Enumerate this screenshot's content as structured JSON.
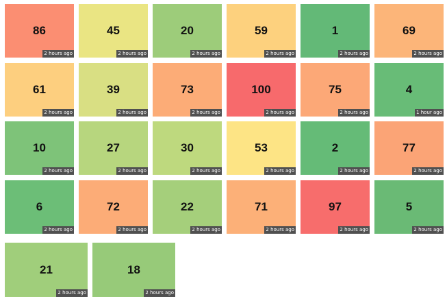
{
  "tiles": [
    {
      "value": "86",
      "age": "2 hours ago",
      "color": "#fb8e72"
    },
    {
      "value": "45",
      "age": "2 hours ago",
      "color": "#eae583"
    },
    {
      "value": "20",
      "age": "2 hours ago",
      "color": "#9dcc7a"
    },
    {
      "value": "59",
      "age": "2 hours ago",
      "color": "#fdd17e"
    },
    {
      "value": "1",
      "age": "2 hours ago",
      "color": "#63b977"
    },
    {
      "value": "69",
      "age": "2 hours ago",
      "color": "#fcb579"
    },
    {
      "value": "61",
      "age": "2 hours ago",
      "color": "#fdcf7f"
    },
    {
      "value": "39",
      "age": "2 hours ago",
      "color": "#d9df83"
    },
    {
      "value": "73",
      "age": "2 hours ago",
      "color": "#fcac77"
    },
    {
      "value": "100",
      "age": "2 hours ago",
      "color": "#f76a6c"
    },
    {
      "value": "75",
      "age": "2 hours ago",
      "color": "#fca877"
    },
    {
      "value": "4",
      "age": "1 hour ago",
      "color": "#68bc77"
    },
    {
      "value": "10",
      "age": "2 hours ago",
      "color": "#7ec379"
    },
    {
      "value": "27",
      "age": "2 hours ago",
      "color": "#b7d67e"
    },
    {
      "value": "30",
      "age": "2 hours ago",
      "color": "#bed97e"
    },
    {
      "value": "53",
      "age": "2 hours ago",
      "color": "#fde485"
    },
    {
      "value": "2",
      "age": "2 hours ago",
      "color": "#65bb77"
    },
    {
      "value": "77",
      "age": "2 hours ago",
      "color": "#fba476"
    },
    {
      "value": "6",
      "age": "2 hours ago",
      "color": "#6cbe77"
    },
    {
      "value": "72",
      "age": "2 hours ago",
      "color": "#fcac77"
    },
    {
      "value": "22",
      "age": "2 hours ago",
      "color": "#a5cf7b"
    },
    {
      "value": "71",
      "age": "2 hours ago",
      "color": "#fcb078"
    },
    {
      "value": "97",
      "age": "2 hours ago",
      "color": "#f76d6c"
    },
    {
      "value": "5",
      "age": "2 hours ago",
      "color": "#6aba75"
    },
    {
      "value": "21",
      "age": "2 hours ago",
      "color": "#a0ce7b"
    },
    {
      "value": "18",
      "age": "2 hours ago",
      "color": "#97ca79"
    }
  ]
}
